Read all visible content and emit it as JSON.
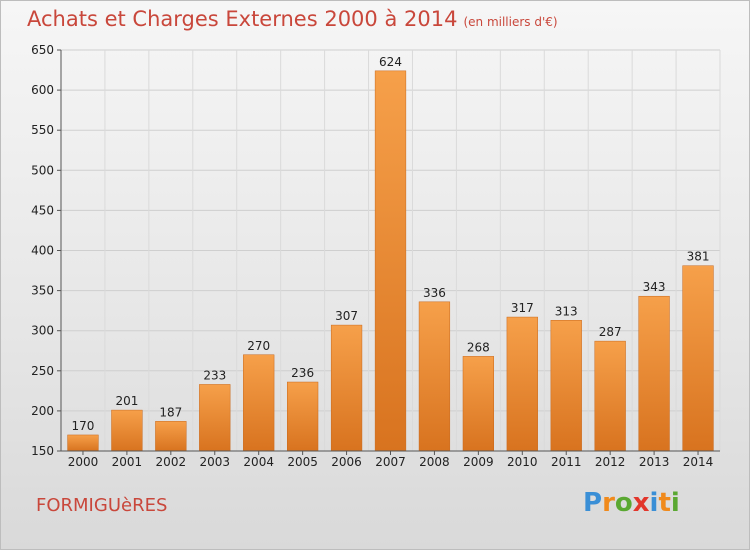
{
  "title": "Achats et Charges Externes 2000 à 2014",
  "subtitle": "(en milliers d'€)",
  "place": "FORMIGUèRES",
  "logo": {
    "text": "Proxiti",
    "letters": [
      {
        "ch": "P",
        "color": "#3a8fd6"
      },
      {
        "ch": "r",
        "color": "#f08a1c"
      },
      {
        "ch": "o",
        "color": "#5aa832"
      },
      {
        "ch": "x",
        "color": "#e2362b"
      },
      {
        "ch": "i",
        "color": "#3a8fd6"
      },
      {
        "ch": "t",
        "color": "#f08a1c"
      },
      {
        "ch": "i",
        "color": "#5aa832"
      }
    ]
  },
  "chart_data": {
    "type": "bar",
    "title": "Achats et Charges Externes 2000 à 2014",
    "subtitle": "(en milliers d'€)",
    "categories": [
      "2000",
      "2001",
      "2002",
      "2003",
      "2004",
      "2005",
      "2006",
      "2007",
      "2008",
      "2009",
      "2010",
      "2011",
      "2012",
      "2013",
      "2014"
    ],
    "values": [
      170,
      201,
      187,
      233,
      270,
      236,
      307,
      624,
      336,
      268,
      317,
      313,
      287,
      343,
      381
    ],
    "ylim": [
      150,
      650
    ],
    "yticks": [
      150,
      200,
      250,
      300,
      350,
      400,
      450,
      500,
      550,
      600,
      650
    ],
    "grid": true,
    "bar_color": "#f0923a",
    "bar_color_dark": "#d8731f"
  }
}
